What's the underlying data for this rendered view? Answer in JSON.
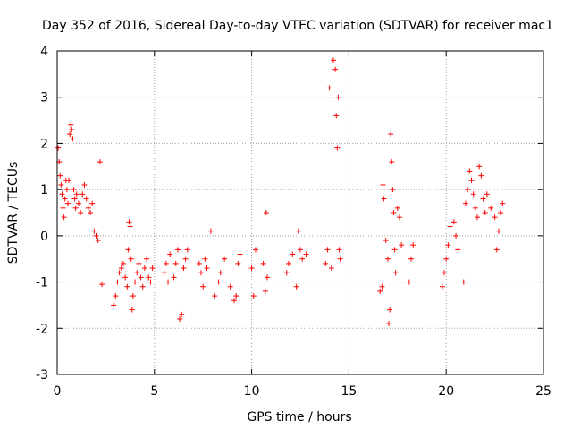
{
  "chart_data": {
    "type": "scatter",
    "title": "Day 352 of 2016, Sidereal Day-to-day VTEC variation (SDTVAR) for receiver mac1",
    "xlabel": "GPS time / hours",
    "ylabel": "SDTVAR / TECUs",
    "xlim": [
      0,
      25
    ],
    "ylim": [
      -3,
      4
    ],
    "xticks": [
      "0",
      "5",
      "10",
      "15",
      "20",
      "25"
    ],
    "yticks": [
      "-3",
      "-2",
      "-1",
      "0",
      "1",
      "2",
      "3",
      "4"
    ],
    "grid": true,
    "marker": "plus",
    "series_color": "#ff0000",
    "series": [
      {
        "name": "SDTVAR",
        "points": [
          [
            0.05,
            1.9
          ],
          [
            0.1,
            1.6
          ],
          [
            0.15,
            1.3
          ],
          [
            0.2,
            1.1
          ],
          [
            0.25,
            0.9
          ],
          [
            0.3,
            0.6
          ],
          [
            0.35,
            0.4
          ],
          [
            0.4,
            0.8
          ],
          [
            0.45,
            1.2
          ],
          [
            0.5,
            1.0
          ],
          [
            0.55,
            0.7
          ],
          [
            0.6,
            1.2
          ],
          [
            0.65,
            2.2
          ],
          [
            0.7,
            2.4
          ],
          [
            0.75,
            2.3
          ],
          [
            0.8,
            2.1
          ],
          [
            0.85,
            1.0
          ],
          [
            0.9,
            0.8
          ],
          [
            0.95,
            0.6
          ],
          [
            1.0,
            0.9
          ],
          [
            1.1,
            0.7
          ],
          [
            1.2,
            0.5
          ],
          [
            1.3,
            0.9
          ],
          [
            1.4,
            1.1
          ],
          [
            1.5,
            0.8
          ],
          [
            1.6,
            0.6
          ],
          [
            1.7,
            0.5
          ],
          [
            1.8,
            0.7
          ],
          [
            1.9,
            0.1
          ],
          [
            2.0,
            0.0
          ],
          [
            2.1,
            -0.1
          ],
          [
            2.2,
            1.6
          ],
          [
            2.3,
            -1.05
          ],
          [
            2.9,
            -1.5
          ],
          [
            3.0,
            -1.3
          ],
          [
            3.1,
            -1.0
          ],
          [
            3.2,
            -0.8
          ],
          [
            3.3,
            -0.7
          ],
          [
            3.4,
            -0.6
          ],
          [
            3.5,
            -0.9
          ],
          [
            3.6,
            -1.1
          ],
          [
            3.65,
            -0.3
          ],
          [
            3.7,
            0.3
          ],
          [
            3.75,
            0.2
          ],
          [
            3.8,
            -0.5
          ],
          [
            3.85,
            -1.6
          ],
          [
            3.9,
            -1.3
          ],
          [
            4.0,
            -1.0
          ],
          [
            4.1,
            -0.8
          ],
          [
            4.2,
            -0.6
          ],
          [
            4.3,
            -0.9
          ],
          [
            4.4,
            -1.1
          ],
          [
            4.5,
            -0.7
          ],
          [
            4.6,
            -0.5
          ],
          [
            4.7,
            -0.9
          ],
          [
            4.8,
            -1.0
          ],
          [
            4.9,
            -0.7
          ],
          [
            5.5,
            -0.8
          ],
          [
            5.6,
            -0.6
          ],
          [
            5.7,
            -1.0
          ],
          [
            5.8,
            -0.4
          ],
          [
            6.0,
            -0.9
          ],
          [
            6.1,
            -0.6
          ],
          [
            6.2,
            -0.3
          ],
          [
            6.3,
            -1.8
          ],
          [
            6.4,
            -1.7
          ],
          [
            6.5,
            -0.7
          ],
          [
            6.6,
            -0.5
          ],
          [
            6.7,
            -0.3
          ],
          [
            7.3,
            -0.6
          ],
          [
            7.4,
            -0.8
          ],
          [
            7.5,
            -1.1
          ],
          [
            7.6,
            -0.5
          ],
          [
            7.7,
            -0.7
          ],
          [
            7.9,
            0.1
          ],
          [
            8.1,
            -1.3
          ],
          [
            8.3,
            -1.0
          ],
          [
            8.4,
            -0.8
          ],
          [
            8.6,
            -0.5
          ],
          [
            8.9,
            -1.1
          ],
          [
            9.1,
            -1.4
          ],
          [
            9.2,
            -1.3
          ],
          [
            9.3,
            -0.6
          ],
          [
            9.4,
            -0.4
          ],
          [
            10.0,
            -0.7
          ],
          [
            10.1,
            -1.3
          ],
          [
            10.2,
            -0.3
          ],
          [
            10.6,
            -0.6
          ],
          [
            10.7,
            -1.2
          ],
          [
            10.75,
            0.5
          ],
          [
            10.8,
            -0.9
          ],
          [
            11.8,
            -0.8
          ],
          [
            11.9,
            -0.6
          ],
          [
            12.1,
            -0.4
          ],
          [
            12.3,
            -1.1
          ],
          [
            12.4,
            0.1
          ],
          [
            12.5,
            -0.3
          ],
          [
            12.6,
            -0.5
          ],
          [
            12.8,
            -0.4
          ],
          [
            13.8,
            -0.6
          ],
          [
            13.9,
            -0.3
          ],
          [
            14.0,
            3.2
          ],
          [
            14.1,
            -0.7
          ],
          [
            14.2,
            3.8
          ],
          [
            14.3,
            3.6
          ],
          [
            14.35,
            2.6
          ],
          [
            14.4,
            1.9
          ],
          [
            14.45,
            3.0
          ],
          [
            14.5,
            -0.3
          ],
          [
            14.55,
            -0.5
          ],
          [
            16.6,
            -1.2
          ],
          [
            16.7,
            -1.1
          ],
          [
            16.75,
            1.1
          ],
          [
            16.8,
            0.8
          ],
          [
            16.9,
            -0.1
          ],
          [
            17.0,
            -0.5
          ],
          [
            17.05,
            -1.9
          ],
          [
            17.1,
            -1.6
          ],
          [
            17.15,
            2.2
          ],
          [
            17.2,
            1.6
          ],
          [
            17.25,
            1.0
          ],
          [
            17.3,
            0.5
          ],
          [
            17.35,
            -0.3
          ],
          [
            17.4,
            -0.8
          ],
          [
            17.5,
            0.6
          ],
          [
            17.6,
            0.4
          ],
          [
            17.7,
            -0.2
          ],
          [
            18.1,
            -1.0
          ],
          [
            18.2,
            -0.5
          ],
          [
            18.3,
            -0.2
          ],
          [
            19.8,
            -1.1
          ],
          [
            19.9,
            -0.8
          ],
          [
            20.0,
            -0.5
          ],
          [
            20.1,
            -0.2
          ],
          [
            20.2,
            0.2
          ],
          [
            20.4,
            0.3
          ],
          [
            20.5,
            0.0
          ],
          [
            20.6,
            -0.3
          ],
          [
            20.9,
            -1.0
          ],
          [
            21.0,
            0.7
          ],
          [
            21.1,
            1.0
          ],
          [
            21.2,
            1.4
          ],
          [
            21.3,
            1.2
          ],
          [
            21.4,
            0.9
          ],
          [
            21.5,
            0.6
          ],
          [
            21.6,
            0.4
          ],
          [
            21.7,
            1.5
          ],
          [
            21.8,
            1.3
          ],
          [
            21.9,
            0.8
          ],
          [
            22.0,
            0.5
          ],
          [
            22.1,
            0.9
          ],
          [
            22.3,
            0.6
          ],
          [
            22.5,
            0.4
          ],
          [
            22.6,
            -0.3
          ],
          [
            22.7,
            0.1
          ],
          [
            22.8,
            0.5
          ],
          [
            22.9,
            0.7
          ]
        ]
      }
    ]
  }
}
